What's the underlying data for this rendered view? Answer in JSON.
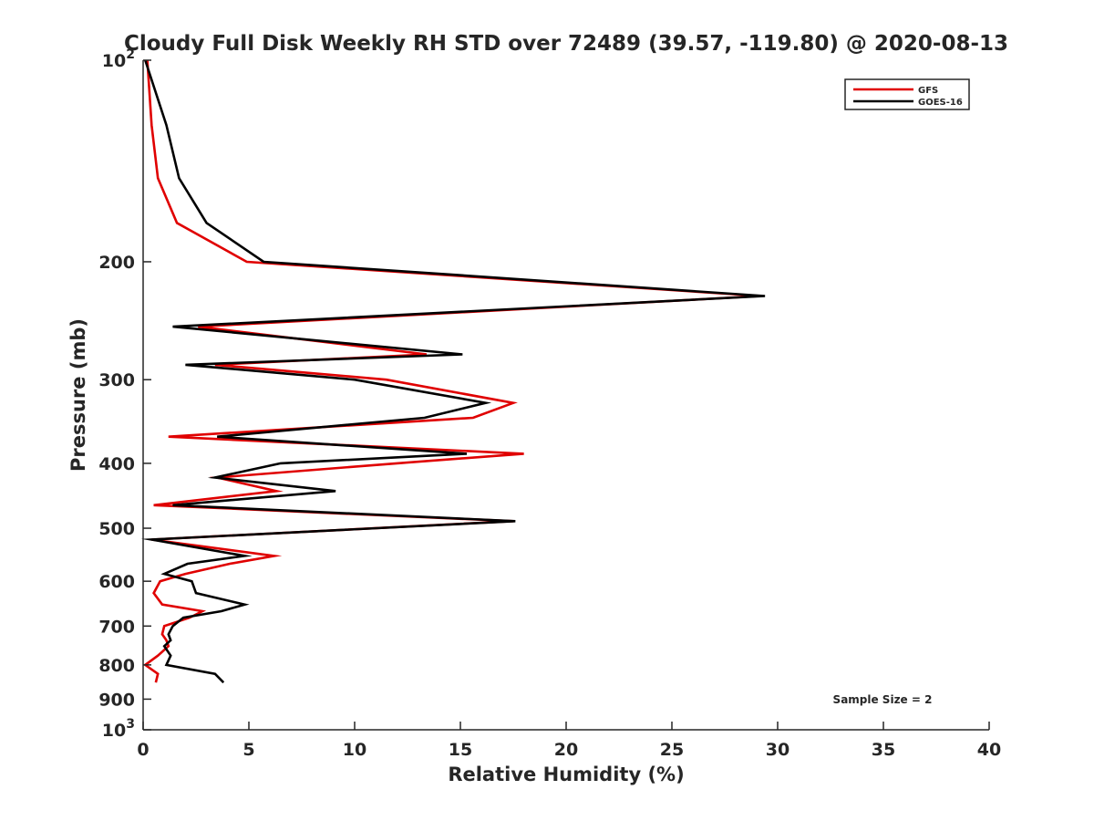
{
  "chart_data": {
    "type": "line",
    "title": "Cloudy Full Disk Weekly RH STD over 72489 (39.57, -119.80) @ 2020-08-13",
    "xlabel": "Relative Humidity (%)",
    "ylabel": "Pressure (mb)",
    "xlim": [
      0,
      40
    ],
    "ylim": [
      100,
      1000
    ],
    "yscale": "log",
    "y_reversed": true,
    "grid": false,
    "legend_position": "top-right",
    "x_ticks": [
      0,
      5,
      10,
      15,
      20,
      25,
      30,
      35,
      40
    ],
    "x_tick_labels": [
      "0",
      "5",
      "10",
      "15",
      "20",
      "25",
      "30",
      "35",
      "40"
    ],
    "y_ticks": [
      100,
      200,
      300,
      400,
      500,
      600,
      700,
      800,
      900,
      1000
    ],
    "y_tick_labels": [
      {
        "base": "10",
        "exp": "2"
      },
      {
        "base": "200",
        "exp": ""
      },
      {
        "base": "300",
        "exp": ""
      },
      {
        "base": "400",
        "exp": ""
      },
      {
        "base": "500",
        "exp": ""
      },
      {
        "base": "600",
        "exp": ""
      },
      {
        "base": "700",
        "exp": ""
      },
      {
        "base": "800",
        "exp": ""
      },
      {
        "base": "900",
        "exp": ""
      },
      {
        "base": "10",
        "exp": "3"
      }
    ],
    "annotation": "Sample Size = 2",
    "series": [
      {
        "name": "GFS",
        "color": "#e00000",
        "points": [
          [
            0.2,
            100
          ],
          [
            0.4,
            125
          ],
          [
            0.7,
            150
          ],
          [
            1.6,
            175
          ],
          [
            4.9,
            200
          ],
          [
            29.2,
            225
          ],
          [
            2.6,
            250
          ],
          [
            13.4,
            275
          ],
          [
            3.4,
            285
          ],
          [
            11.5,
            300
          ],
          [
            17.5,
            325
          ],
          [
            15.6,
            342
          ],
          [
            1.2,
            365
          ],
          [
            18.0,
            387
          ],
          [
            12.0,
            400
          ],
          [
            3.5,
            420
          ],
          [
            6.3,
            440
          ],
          [
            0.5,
            462
          ],
          [
            17.5,
            488
          ],
          [
            0.4,
            520
          ],
          [
            6.2,
            550
          ],
          [
            4.1,
            565
          ],
          [
            2.0,
            585
          ],
          [
            0.8,
            600
          ],
          [
            0.5,
            625
          ],
          [
            0.9,
            650
          ],
          [
            2.8,
            665
          ],
          [
            2.2,
            680
          ],
          [
            1.0,
            700
          ],
          [
            0.9,
            720
          ],
          [
            1.1,
            735
          ],
          [
            1.2,
            750
          ],
          [
            0.7,
            775
          ],
          [
            0.1,
            800
          ],
          [
            0.7,
            825
          ],
          [
            0.6,
            850
          ]
        ]
      },
      {
        "name": "GOES-16",
        "color": "#000000",
        "points": [
          [
            0.1,
            100
          ],
          [
            1.1,
            125
          ],
          [
            1.7,
            150
          ],
          [
            3.0,
            175
          ],
          [
            5.7,
            200
          ],
          [
            29.4,
            225
          ],
          [
            1.4,
            250
          ],
          [
            15.1,
            275
          ],
          [
            2.0,
            285
          ],
          [
            10.0,
            300
          ],
          [
            16.2,
            325
          ],
          [
            13.3,
            342
          ],
          [
            3.5,
            365
          ],
          [
            15.3,
            387
          ],
          [
            6.5,
            400
          ],
          [
            3.4,
            420
          ],
          [
            9.1,
            440
          ],
          [
            1.4,
            462
          ],
          [
            17.6,
            488
          ],
          [
            0.4,
            520
          ],
          [
            4.8,
            550
          ],
          [
            2.1,
            565
          ],
          [
            1.0,
            585
          ],
          [
            2.3,
            600
          ],
          [
            2.5,
            625
          ],
          [
            4.8,
            650
          ],
          [
            3.7,
            665
          ],
          [
            1.9,
            680
          ],
          [
            1.4,
            700
          ],
          [
            1.2,
            720
          ],
          [
            1.3,
            735
          ],
          [
            1.0,
            750
          ],
          [
            1.3,
            775
          ],
          [
            1.1,
            800
          ],
          [
            3.4,
            825
          ],
          [
            3.8,
            850
          ]
        ]
      }
    ]
  }
}
